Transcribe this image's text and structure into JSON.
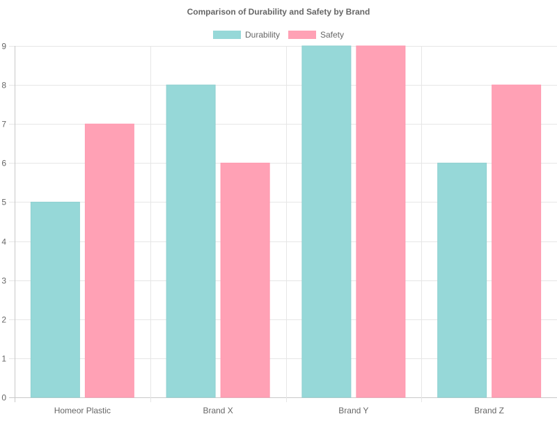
{
  "chart_data": {
    "type": "bar",
    "title": "Comparison of Durability and Safety by Brand",
    "categories": [
      "Homeor Plastic",
      "Brand X",
      "Brand Y",
      "Brand Z"
    ],
    "series": [
      {
        "name": "Durability",
        "values": [
          5,
          8,
          9,
          6
        ],
        "color": "#96d8d8",
        "border_color": "#8fd0d0"
      },
      {
        "name": "Safety",
        "values": [
          7,
          6,
          9,
          8
        ],
        "color": "#ffa1b5",
        "border_color": "#ff99b0"
      }
    ],
    "ylim": [
      0,
      9
    ],
    "yticks": [
      "0",
      "1",
      "2",
      "3",
      "4",
      "5",
      "6",
      "7",
      "8",
      "9"
    ],
    "xlabel": "",
    "ylabel": "",
    "grid": true,
    "legend_position": "top-center"
  }
}
